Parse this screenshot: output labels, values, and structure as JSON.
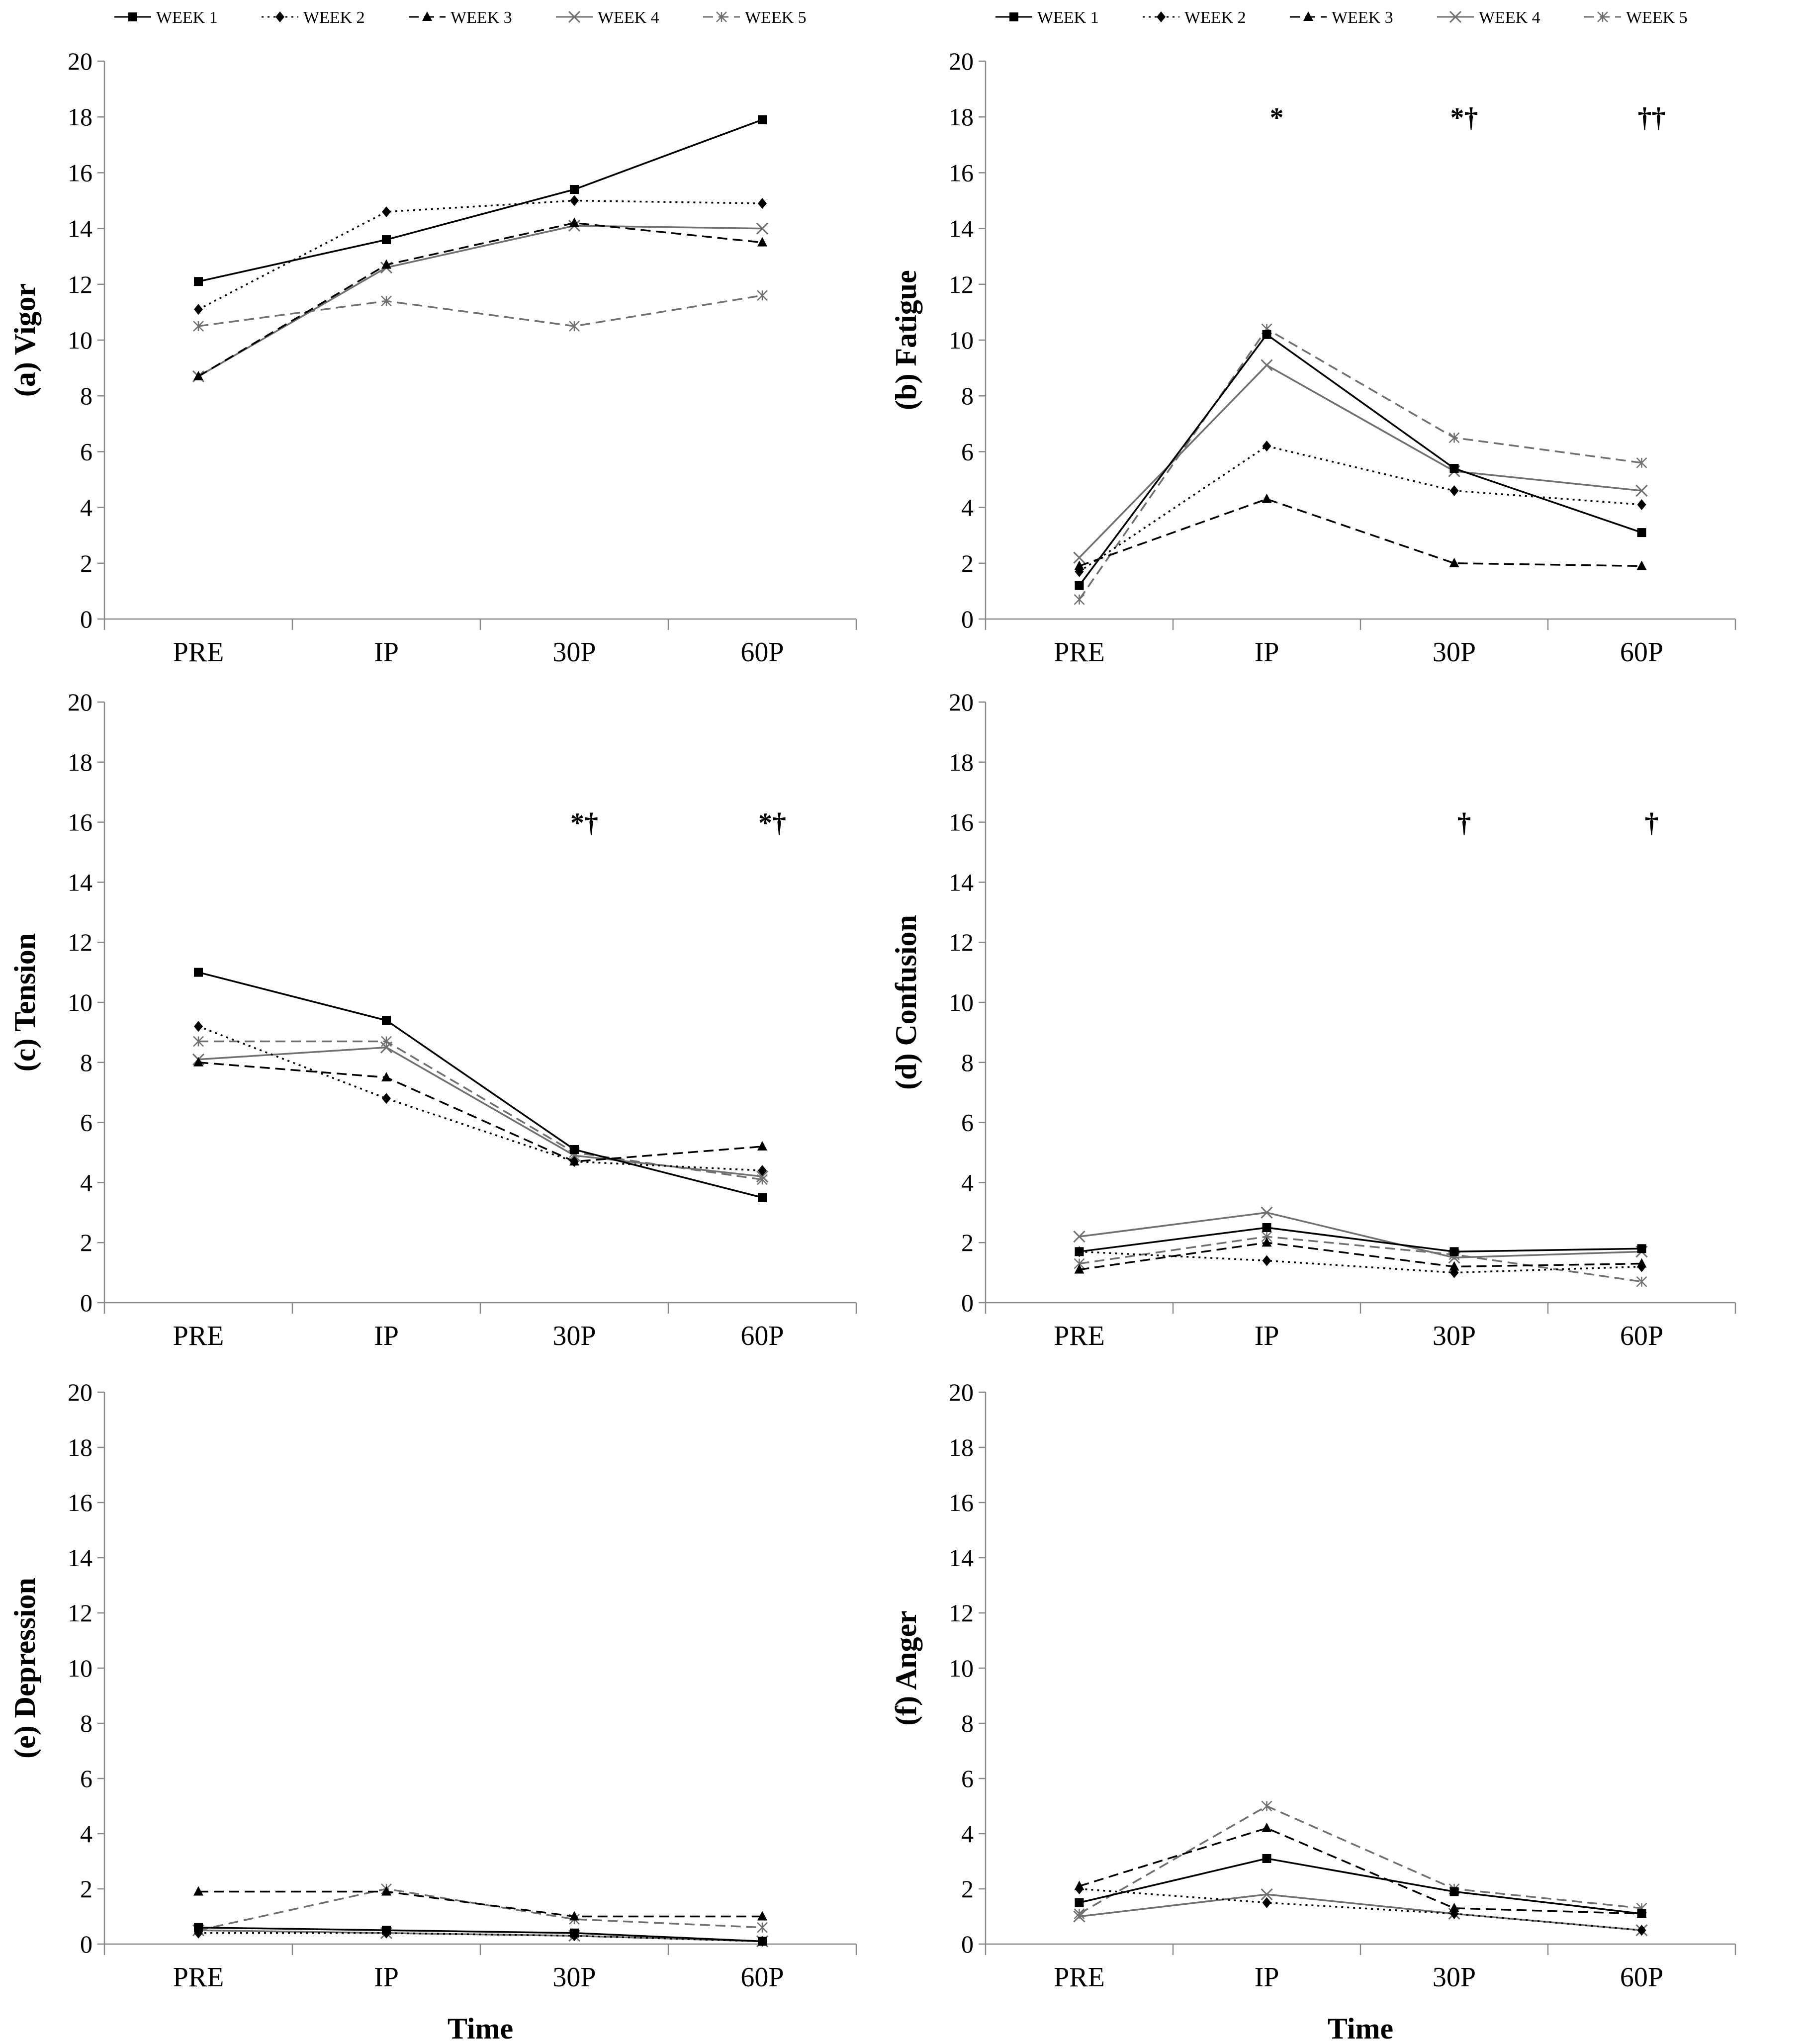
{
  "legend": [
    {
      "name": "WEEK 1",
      "marker": "square",
      "dash": "solid",
      "color": "#000000"
    },
    {
      "name": "WEEK 2",
      "marker": "diamond",
      "dash": "dotted",
      "color": "#000000"
    },
    {
      "name": "WEEK 3",
      "marker": "triangle",
      "dash": "dashed",
      "color": "#000000"
    },
    {
      "name": "WEEK 4",
      "marker": "x",
      "dash": "solid",
      "color": "#707070"
    },
    {
      "name": "WEEK 5",
      "marker": "star",
      "dash": "dashed",
      "color": "#707070"
    }
  ],
  "chart_data": [
    {
      "type": "line",
      "title": "",
      "ylabel": "(a) Vigor",
      "xlabel": "",
      "categories": [
        "PRE",
        "IP",
        "30P",
        "60P"
      ],
      "ylim": [
        0,
        20
      ],
      "yticks": [
        0,
        2,
        4,
        6,
        8,
        10,
        12,
        14,
        16,
        18,
        20
      ],
      "series": [
        {
          "name": "WEEK 1",
          "values": [
            12.1,
            13.6,
            15.4,
            17.9
          ]
        },
        {
          "name": "WEEK 2",
          "values": [
            11.1,
            14.6,
            15.0,
            14.9
          ]
        },
        {
          "name": "WEEK 3",
          "values": [
            8.7,
            12.7,
            14.2,
            13.5
          ]
        },
        {
          "name": "WEEK 4",
          "values": [
            8.7,
            12.6,
            14.1,
            14.0
          ]
        },
        {
          "name": "WEEK 5",
          "values": [
            10.5,
            11.4,
            10.5,
            11.6
          ]
        }
      ],
      "annotations": []
    },
    {
      "type": "line",
      "title": "",
      "ylabel": "(b) Fatigue",
      "xlabel": "",
      "categories": [
        "PRE",
        "IP",
        "30P",
        "60P"
      ],
      "ylim": [
        0,
        20
      ],
      "yticks": [
        0,
        2,
        4,
        6,
        8,
        10,
        12,
        14,
        16,
        18,
        20
      ],
      "series": [
        {
          "name": "WEEK 1",
          "values": [
            1.2,
            10.2,
            5.4,
            3.1
          ]
        },
        {
          "name": "WEEK 2",
          "values": [
            1.7,
            6.2,
            4.6,
            4.1
          ]
        },
        {
          "name": "WEEK 3",
          "values": [
            1.9,
            4.3,
            2.0,
            1.9
          ]
        },
        {
          "name": "WEEK 4",
          "values": [
            2.2,
            9.1,
            5.3,
            4.6
          ]
        },
        {
          "name": "WEEK 5",
          "values": [
            0.7,
            10.4,
            6.5,
            5.6
          ]
        }
      ],
      "annotations": [
        {
          "category": "IP",
          "y": 18,
          "text": "*"
        },
        {
          "category": "30P",
          "y": 18,
          "text": "*†"
        },
        {
          "category": "60P",
          "y": 18,
          "text": "††"
        }
      ]
    },
    {
      "type": "line",
      "title": "",
      "ylabel": "(c) Tension",
      "xlabel": "",
      "categories": [
        "PRE",
        "IP",
        "30P",
        "60P"
      ],
      "ylim": [
        0,
        20
      ],
      "yticks": [
        0,
        2,
        4,
        6,
        8,
        10,
        12,
        14,
        16,
        18,
        20
      ],
      "series": [
        {
          "name": "WEEK 1",
          "values": [
            11.0,
            9.4,
            5.1,
            3.5
          ]
        },
        {
          "name": "WEEK 2",
          "values": [
            9.2,
            6.8,
            4.7,
            4.4
          ]
        },
        {
          "name": "WEEK 3",
          "values": [
            8.0,
            7.5,
            4.7,
            5.2
          ]
        },
        {
          "name": "WEEK 4",
          "values": [
            8.1,
            8.5,
            4.9,
            4.2
          ]
        },
        {
          "name": "WEEK 5",
          "values": [
            8.7,
            8.7,
            5.0,
            4.1
          ]
        }
      ],
      "annotations": [
        {
          "category": "30P",
          "y": 16,
          "text": "*†"
        },
        {
          "category": "60P",
          "y": 16,
          "text": "*†"
        }
      ]
    },
    {
      "type": "line",
      "title": "",
      "ylabel": "(d) Confusion",
      "xlabel": "",
      "categories": [
        "PRE",
        "IP",
        "30P",
        "60P"
      ],
      "ylim": [
        0,
        20
      ],
      "yticks": [
        0,
        2,
        4,
        6,
        8,
        10,
        12,
        14,
        16,
        18,
        20
      ],
      "series": [
        {
          "name": "WEEK 1",
          "values": [
            1.7,
            2.5,
            1.7,
            1.8
          ]
        },
        {
          "name": "WEEK 2",
          "values": [
            1.7,
            1.4,
            1.0,
            1.2
          ]
        },
        {
          "name": "WEEK 3",
          "values": [
            1.1,
            2.0,
            1.2,
            1.3
          ]
        },
        {
          "name": "WEEK 4",
          "values": [
            2.2,
            3.0,
            1.5,
            1.7
          ]
        },
        {
          "name": "WEEK 5",
          "values": [
            1.3,
            2.2,
            1.6,
            0.7
          ]
        }
      ],
      "annotations": [
        {
          "category": "30P",
          "y": 16,
          "text": "†"
        },
        {
          "category": "60P",
          "y": 16,
          "text": "†"
        }
      ]
    },
    {
      "type": "line",
      "title": "",
      "ylabel": "(e) Depression",
      "xlabel": "Time",
      "categories": [
        "PRE",
        "IP",
        "30P",
        "60P"
      ],
      "ylim": [
        0,
        20
      ],
      "yticks": [
        0,
        2,
        4,
        6,
        8,
        10,
        12,
        14,
        16,
        18,
        20
      ],
      "series": [
        {
          "name": "WEEK 1",
          "values": [
            0.6,
            0.5,
            0.4,
            0.1
          ]
        },
        {
          "name": "WEEK 2",
          "values": [
            0.4,
            0.4,
            0.3,
            0.1
          ]
        },
        {
          "name": "WEEK 3",
          "values": [
            1.9,
            1.9,
            1.0,
            1.0
          ]
        },
        {
          "name": "WEEK 4",
          "values": [
            0.5,
            0.4,
            0.3,
            0.1
          ]
        },
        {
          "name": "WEEK 5",
          "values": [
            0.5,
            2.0,
            0.9,
            0.6
          ]
        }
      ],
      "annotations": []
    },
    {
      "type": "line",
      "title": "",
      "ylabel": "(f) Anger",
      "xlabel": "Time",
      "categories": [
        "PRE",
        "IP",
        "30P",
        "60P"
      ],
      "ylim": [
        0,
        20
      ],
      "yticks": [
        0,
        2,
        4,
        6,
        8,
        10,
        12,
        14,
        16,
        18,
        20
      ],
      "series": [
        {
          "name": "WEEK 1",
          "values": [
            1.5,
            3.1,
            1.9,
            1.1
          ]
        },
        {
          "name": "WEEK 2",
          "values": [
            2.0,
            1.5,
            1.1,
            0.5
          ]
        },
        {
          "name": "WEEK 3",
          "values": [
            2.1,
            4.2,
            1.3,
            1.1
          ]
        },
        {
          "name": "WEEK 4",
          "values": [
            1.0,
            1.8,
            1.1,
            0.5
          ]
        },
        {
          "name": "WEEK 5",
          "values": [
            1.1,
            5.0,
            2.0,
            1.3
          ]
        }
      ],
      "annotations": []
    }
  ]
}
